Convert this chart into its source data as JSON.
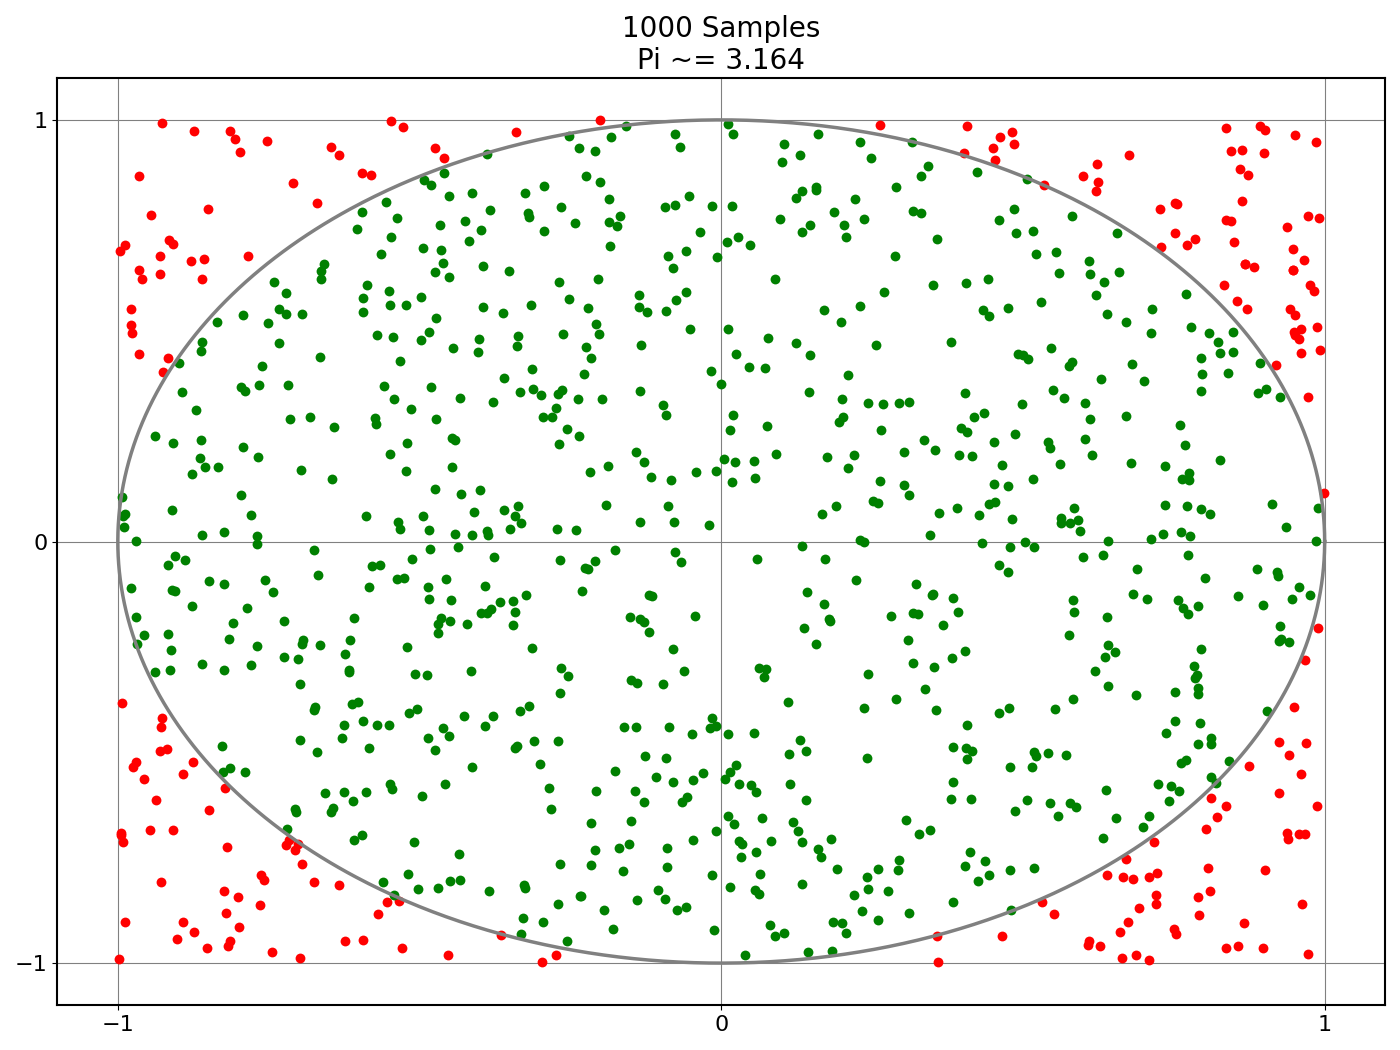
{
  "n_samples": 1000,
  "pi_estimate": 3.164,
  "title_line1": "1000 Samples",
  "title_line2": "Pi ~= 3.164",
  "inside_color": "#008000",
  "outside_color": "#ff0000",
  "circle_color": "gray",
  "circle_linewidth": 2.5,
  "marker_size": 50,
  "grid": true,
  "figsize": [
    14.0,
    10.5
  ],
  "dpi": 100,
  "title_fontsize": 20,
  "tick_fontsize": 16
}
